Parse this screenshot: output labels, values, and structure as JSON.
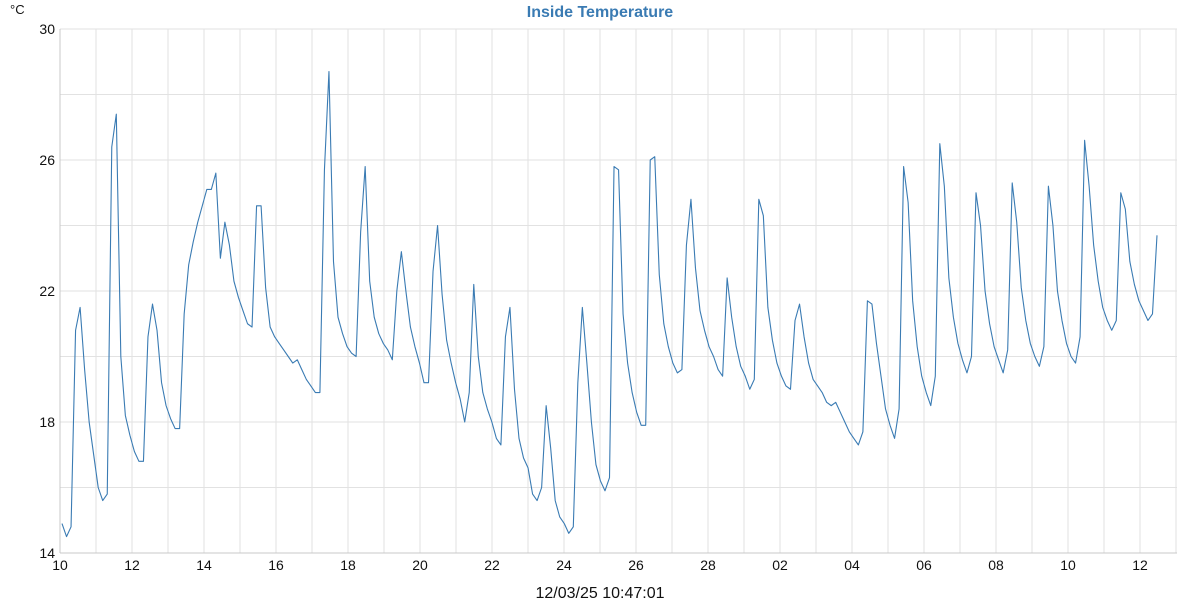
{
  "chart_data": {
    "type": "line",
    "title": "Inside Temperature",
    "y_unit": "°C",
    "timestamp": "12/03/25 10:47:01",
    "ylim": [
      14,
      30
    ],
    "y_ticks": [
      14,
      18,
      22,
      26,
      30
    ],
    "x_tick_labels": [
      "10",
      "12",
      "14",
      "16",
      "18",
      "20",
      "22",
      "24",
      "26",
      "28",
      "02",
      "04",
      "06",
      "08",
      "10",
      "12"
    ],
    "grid": true,
    "colors": {
      "line": "#3a7bb3",
      "title": "#3a7bb3",
      "grid": "#e2e2e2"
    },
    "series": [
      {
        "values": [
          14.9,
          14.5,
          14.8,
          20.8,
          21.5,
          19.6,
          18.0,
          17.0,
          16.0,
          15.6,
          15.8,
          26.4,
          27.4,
          20.0,
          18.2,
          17.6,
          17.1,
          16.8,
          16.8,
          20.6,
          21.6,
          20.8,
          19.2,
          18.5,
          18.1,
          17.8,
          17.8,
          21.3,
          22.8,
          23.5,
          24.1,
          24.6,
          25.1,
          25.1,
          25.6,
          23.0,
          24.1,
          23.4,
          22.3,
          21.8,
          21.4,
          21.0,
          20.9,
          24.6,
          24.6,
          22.1,
          20.9,
          20.6,
          20.4,
          20.2,
          20.0,
          19.8,
          19.9,
          19.6,
          19.3,
          19.1,
          18.9,
          18.9,
          25.7,
          28.7,
          22.9,
          21.2,
          20.7,
          20.3,
          20.1,
          20.0,
          23.8,
          25.8,
          22.3,
          21.2,
          20.7,
          20.4,
          20.2,
          19.9,
          22.0,
          23.2,
          22.0,
          20.9,
          20.3,
          19.8,
          19.2,
          19.2,
          22.6,
          24.0,
          21.9,
          20.5,
          19.8,
          19.2,
          18.7,
          18.0,
          18.9,
          22.2,
          20.0,
          18.9,
          18.4,
          18.0,
          17.5,
          17.3,
          20.6,
          21.5,
          19.0,
          17.5,
          16.9,
          16.6,
          15.8,
          15.6,
          16.0,
          18.5,
          17.2,
          15.6,
          15.1,
          14.9,
          14.6,
          14.8,
          19.2,
          21.5,
          19.8,
          18.0,
          16.7,
          16.2,
          15.9,
          16.3,
          25.8,
          25.7,
          21.3,
          19.8,
          18.9,
          18.3,
          17.9,
          17.9,
          26.0,
          26.1,
          22.5,
          21.0,
          20.3,
          19.8,
          19.5,
          19.6,
          23.4,
          24.8,
          22.7,
          21.4,
          20.8,
          20.3,
          20.0,
          19.6,
          19.4,
          22.4,
          21.2,
          20.3,
          19.7,
          19.4,
          19.0,
          19.3,
          24.8,
          24.3,
          21.5,
          20.5,
          19.8,
          19.4,
          19.1,
          19.0,
          21.1,
          21.6,
          20.6,
          19.8,
          19.3,
          19.1,
          18.9,
          18.6,
          18.5,
          18.6,
          18.3,
          18.0,
          17.7,
          17.5,
          17.3,
          17.7,
          21.7,
          21.6,
          20.4,
          19.4,
          18.4,
          17.9,
          17.5,
          18.4,
          25.8,
          24.7,
          21.7,
          20.3,
          19.4,
          18.9,
          18.5,
          19.4,
          26.5,
          25.2,
          22.4,
          21.2,
          20.4,
          19.9,
          19.5,
          20.0,
          25.0,
          24.0,
          22.0,
          21.0,
          20.3,
          19.9,
          19.5,
          20.2,
          25.3,
          24.1,
          22.1,
          21.1,
          20.4,
          20.0,
          19.7,
          20.3,
          25.2,
          24.0,
          22.0,
          21.1,
          20.4,
          20.0,
          19.8,
          20.6,
          26.6,
          25.2,
          23.4,
          22.3,
          21.5,
          21.1,
          20.8,
          21.1,
          25.0,
          24.5,
          22.9,
          22.2,
          21.7,
          21.4,
          21.1,
          21.3,
          23.7
        ]
      }
    ]
  }
}
